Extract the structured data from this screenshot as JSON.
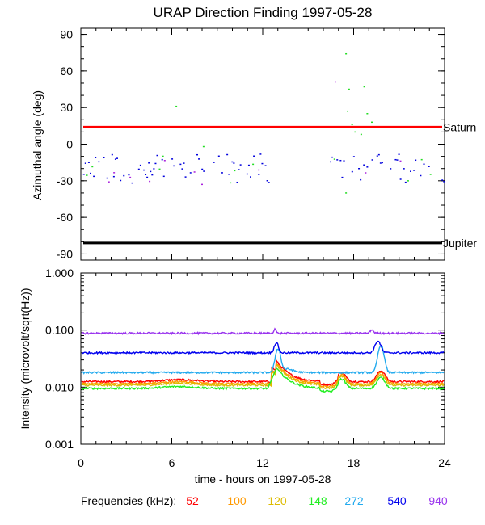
{
  "title": "URAP Direction Finding  1997-05-28",
  "xlabel": "time - hours on 1997-05-28",
  "legend_label": "Frequencies (kHz):",
  "colors": {
    "saturn_line": "#ff0000",
    "jupiter_line": "#000000"
  },
  "chart_data": [
    {
      "type": "scatter",
      "panel": "top",
      "ylabel": "Azimuthal angle (deg)",
      "xlim": [
        0,
        24
      ],
      "ylim": [
        -95,
        95
      ],
      "xticks": [
        "0",
        "6",
        "12",
        "18",
        "24"
      ],
      "yticks": [
        "90",
        "60",
        "30",
        "0",
        "-30",
        "-60",
        "-90"
      ],
      "reference_lines": [
        {
          "name": "Saturn",
          "y": 14,
          "color": "#ff0000"
        },
        {
          "name": "Jupiter",
          "y": -81,
          "color": "#000000"
        }
      ],
      "outliers": [
        {
          "x": 6.3,
          "y": 31,
          "color": "#22dd22"
        },
        {
          "x": 8.1,
          "y": -2,
          "color": "#22dd22"
        },
        {
          "x": 16.8,
          "y": 51,
          "color": "#aa22dd"
        },
        {
          "x": 17.5,
          "y": 74,
          "color": "#22dd22"
        },
        {
          "x": 17.7,
          "y": 45,
          "color": "#22dd22"
        },
        {
          "x": 17.6,
          "y": 27,
          "color": "#22dd22"
        },
        {
          "x": 17.9,
          "y": 16,
          "color": "#22dd22"
        },
        {
          "x": 18.1,
          "y": 10,
          "color": "#22dd22"
        },
        {
          "x": 18.7,
          "y": 47,
          "color": "#22dd22"
        },
        {
          "x": 18.9,
          "y": 25,
          "color": "#22dd22"
        },
        {
          "x": 19.2,
          "y": 18,
          "color": "#22dd22"
        },
        {
          "x": 18.5,
          "y": 8,
          "color": "#22dd22"
        },
        {
          "x": 17.5,
          "y": -40,
          "color": "#22dd22"
        },
        {
          "x": 8.0,
          "y": -33,
          "color": "#aa22dd"
        }
      ],
      "cluster": {
        "color": "#0000dd",
        "center": -20,
        "spread": 12,
        "gap": [
          12.5,
          16.3
        ]
      }
    },
    {
      "type": "line",
      "panel": "bottom",
      "ylabel": "Intensity (microvolt/sqrt(Hz))",
      "scale": "log",
      "xlim": [
        0,
        24
      ],
      "ylim": [
        0.001,
        1.0
      ],
      "xticks": [
        "0",
        "6",
        "12",
        "18",
        "24"
      ],
      "yticks": [
        "1.000",
        "0.100",
        "0.010",
        "0.001"
      ],
      "series": [
        {
          "name": "52",
          "color": "#ff0000",
          "baseline": 0.0125
        },
        {
          "name": "100",
          "color": "#ff9900",
          "baseline": 0.0115
        },
        {
          "name": "120",
          "color": "#ddbb00",
          "baseline": 0.0108
        },
        {
          "name": "148",
          "color": "#22ee22",
          "baseline": 0.0095
        },
        {
          "name": "272",
          "color": "#22aaee",
          "baseline": 0.018
        },
        {
          "name": "540",
          "color": "#0000ee",
          "baseline": 0.04
        },
        {
          "name": "940",
          "color": "#9933ee",
          "baseline": 0.088
        }
      ],
      "events": [
        {
          "x": 13.0,
          "series": [
            "52",
            "100",
            "120",
            "148",
            "272",
            "540",
            "940"
          ]
        },
        {
          "x": 17.2
        },
        {
          "x": 19.8,
          "series": [
            "272",
            "540"
          ]
        }
      ]
    }
  ]
}
